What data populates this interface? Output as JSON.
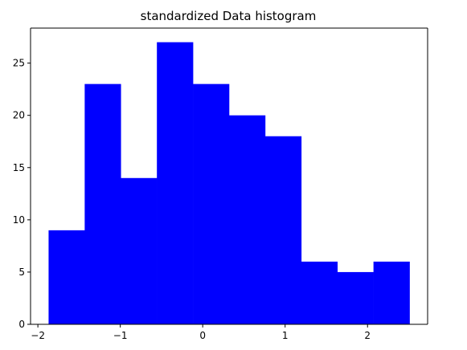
{
  "chart_data": {
    "type": "bar",
    "title": "standardized Data histogram",
    "xlabel": "",
    "ylabel": "",
    "bin_edges": [
      -1.87,
      -1.432,
      -0.994,
      -0.556,
      -0.118,
      0.32,
      0.758,
      1.196,
      1.634,
      2.072,
      2.51
    ],
    "values": [
      9,
      23,
      14,
      27,
      23,
      20,
      18,
      6,
      5,
      6
    ],
    "bar_color": "#0000ff",
    "xlim": [
      -2.089,
      2.729
    ],
    "ylim": [
      0,
      28.35
    ],
    "xticks": [
      -2,
      -1,
      0,
      1,
      2
    ],
    "xtick_labels": [
      "−2",
      "−1",
      "0",
      "1",
      "2"
    ],
    "yticks": [
      0,
      5,
      10,
      15,
      20,
      25
    ],
    "ytick_labels": [
      "0",
      "5",
      "10",
      "15",
      "20",
      "25"
    ],
    "grid": false,
    "legend": false
  }
}
